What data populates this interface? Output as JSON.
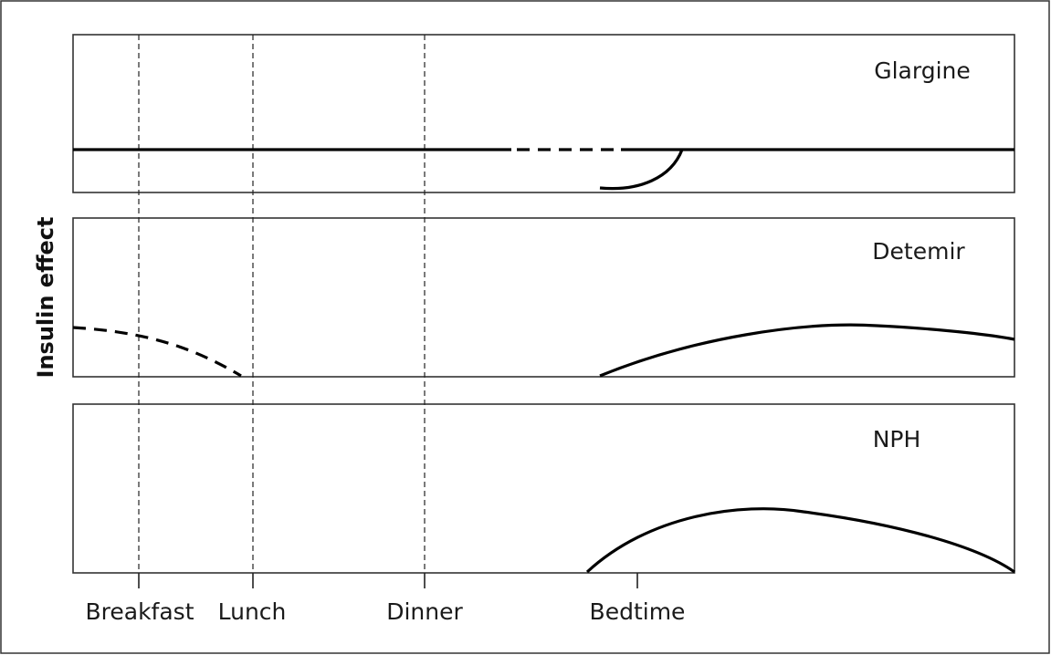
{
  "diagram": {
    "y_axis_label": "Insulin effect",
    "panels": [
      {
        "id": "glargine",
        "label": "Glargine"
      },
      {
        "id": "detemir",
        "label": "Detemir"
      },
      {
        "id": "nph",
        "label": "NPH"
      }
    ],
    "timepoints": [
      {
        "id": "breakfast",
        "label": "Breakfast"
      },
      {
        "id": "lunch",
        "label": "Lunch"
      },
      {
        "id": "dinner",
        "label": "Dinner"
      },
      {
        "id": "bedtime",
        "label": "Bedtime"
      }
    ]
  }
}
